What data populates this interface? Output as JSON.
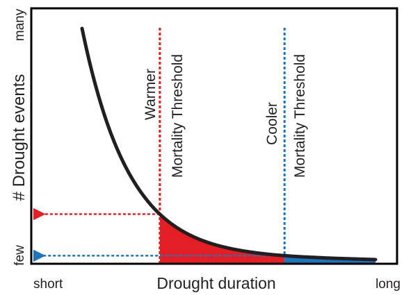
{
  "chart_data": {
    "type": "line",
    "title": "",
    "xlabel": "Drought duration",
    "ylabel": "# Drought events",
    "x_tick_labels": {
      "start": "short",
      "end": "long"
    },
    "y_tick_labels": {
      "start": "few",
      "end": "many"
    },
    "grid": false,
    "legend": "none",
    "series": [
      {
        "x": [
          0.0,
          0.05,
          0.1,
          0.15,
          0.2,
          0.25,
          0.3,
          0.35,
          0.4,
          0.45,
          0.5,
          0.55,
          0.6,
          0.65,
          0.7,
          0.75,
          0.8,
          0.85,
          0.9,
          0.95,
          1.0
        ],
        "y": [
          1.0,
          0.737,
          0.543,
          0.401,
          0.297,
          0.22,
          0.164,
          0.123,
          0.093,
          0.071,
          0.055,
          0.043,
          0.034,
          0.027,
          0.022,
          0.018,
          0.015,
          0.012,
          0.01,
          0.008,
          0.006
        ]
      }
    ],
    "thresholds": [
      {
        "line1": "Warmer",
        "line2": "Mortality Threshold",
        "x": 0.265,
        "color": "#e31e24",
        "fill": "#e31e24"
      },
      {
        "line1": "Cooler",
        "line2": "Mortality Threshold",
        "x": 0.69,
        "color": "#1f75bc",
        "fill": "#1f75bc"
      }
    ],
    "colors": {
      "curve": "#231f20",
      "axes": "#000000"
    }
  }
}
